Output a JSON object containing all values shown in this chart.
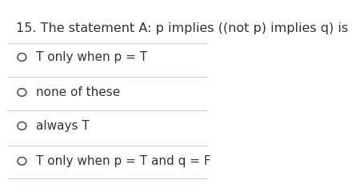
{
  "title": "15. The statement A: p implies ((not p) implies q) is",
  "options": [
    "T only when p = T",
    "none of these",
    "always T",
    "T only when p = T and q = F"
  ],
  "background_color": "#ffffff",
  "text_color": "#333333",
  "line_color": "#cccccc",
  "title_fontsize": 11.5,
  "option_fontsize": 11.0,
  "circle_color": "#555555"
}
